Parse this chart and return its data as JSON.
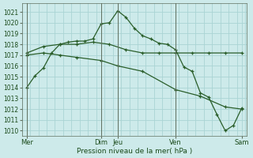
{
  "xlabel": "Pression niveau de la mer( hPa )",
  "ylim": [
    1009.5,
    1021.8
  ],
  "yticks": [
    1010,
    1011,
    1012,
    1013,
    1014,
    1015,
    1016,
    1017,
    1018,
    1019,
    1020,
    1021
  ],
  "background_color": "#cdeaea",
  "grid_color": "#aad4d4",
  "line_color": "#2a5e2a",
  "day_line_color": "#5a7a5a",
  "xlim": [
    -0.3,
    13.3
  ],
  "xtick_positions": [
    0,
    4.5,
    5.5,
    9,
    13
  ],
  "xtick_labels": [
    "Mer",
    "Dim",
    "Jeu",
    "Ven",
    "Sam"
  ],
  "day_lines": [
    0,
    4.5,
    5.5,
    9,
    13
  ],
  "series1_x": [
    0,
    0.5,
    1.0,
    1.5,
    2.0,
    2.5,
    3.0,
    3.5,
    4.0,
    4.5,
    5.0,
    5.5,
    6.0,
    6.5,
    7.0,
    7.5,
    8.0,
    8.5,
    9.0,
    9.5,
    10.0,
    10.5,
    11.0,
    11.5,
    12.0,
    12.5,
    13.0
  ],
  "series1_y": [
    1014.0,
    1015.1,
    1015.8,
    1017.2,
    1018.0,
    1018.2,
    1018.3,
    1018.3,
    1018.5,
    1019.9,
    1020.0,
    1021.1,
    1020.5,
    1019.5,
    1018.8,
    1018.5,
    1018.1,
    1018.0,
    1017.5,
    1015.9,
    1015.5,
    1013.5,
    1013.1,
    1011.5,
    1010.0,
    1010.5,
    1012.1
  ],
  "series2_x": [
    0,
    1.0,
    2.0,
    3.0,
    4.0,
    5.0,
    6.0,
    7.0,
    8.0,
    9.0,
    10.0,
    11.0,
    12.0,
    13.0
  ],
  "series2_y": [
    1017.2,
    1017.8,
    1018.0,
    1018.0,
    1018.2,
    1018.0,
    1017.5,
    1017.2,
    1017.2,
    1017.2,
    1017.2,
    1017.2,
    1017.2,
    1017.2
  ],
  "series3_x": [
    0,
    1.0,
    2.0,
    3.0,
    4.5,
    5.5,
    7.0,
    9.0,
    10.5,
    12.0,
    13.0
  ],
  "series3_y": [
    1017.0,
    1017.2,
    1017.0,
    1016.8,
    1016.5,
    1016.0,
    1015.5,
    1013.8,
    1013.2,
    1012.2,
    1012.0
  ]
}
